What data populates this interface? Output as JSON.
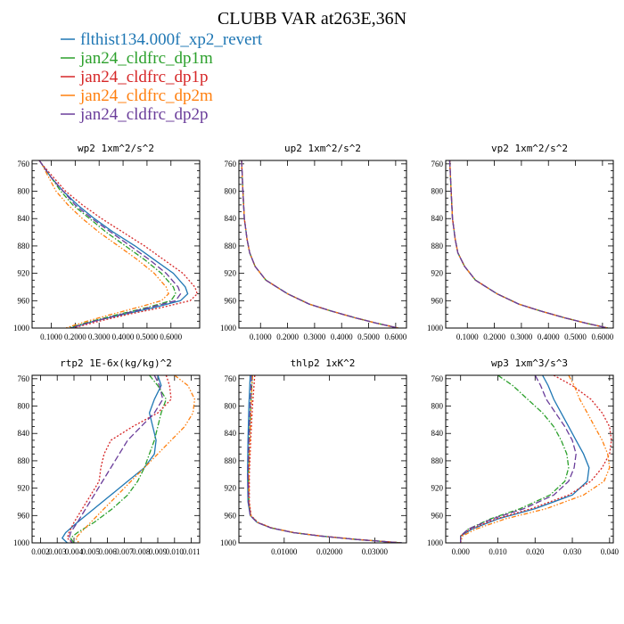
{
  "chart_data": {
    "title": "CLUBB VAR at263E,36N",
    "series": [
      {
        "name": "flthist134.000f_xp2_revert",
        "color": "#1f77b4",
        "dash": ""
      },
      {
        "name": "jan24_cldfrc_dp1m",
        "color": "#2ca02c",
        "dash": "6,2,1.5,2"
      },
      {
        "name": "jan24_cldfrc_dp1p",
        "color": "#d62728",
        "dash": "2,2"
      },
      {
        "name": "jan24_cldfrc_dp2m",
        "color": "#ff7f0e",
        "dash": "5,2,1.5,2,1.5,2"
      },
      {
        "name": "jan24_cldfrc_dp2p",
        "color": "#6a3d9a",
        "dash": "7,3"
      }
    ],
    "y_ticks": [
      "760",
      "800",
      "840",
      "880",
      "920",
      "960",
      "1000"
    ],
    "y_values": [
      760,
      800,
      840,
      880,
      920,
      960,
      1000
    ],
    "ylim": [
      1000,
      755
    ],
    "panels": [
      {
        "id": "wp2",
        "type": "line",
        "title": "wp2   1xm^2/s^2",
        "xlim": [
          0.02,
          0.72
        ],
        "x_ticks": [
          0.1,
          0.2,
          0.3,
          0.4,
          0.5,
          0.6
        ],
        "x_tick_labels": [
          "0.1000",
          "0.2000",
          "0.3000",
          "0.4000",
          "0.5000",
          "0.6000"
        ],
        "y": [
          755,
          760,
          780,
          800,
          820,
          840,
          860,
          880,
          900,
          920,
          940,
          950,
          960,
          970,
          980,
          990,
          1000
        ],
        "values": [
          [
            0.05,
            0.06,
            0.1,
            0.15,
            0.21,
            0.28,
            0.36,
            0.45,
            0.53,
            0.61,
            0.66,
            0.67,
            0.64,
            0.53,
            0.4,
            0.28,
            0.18
          ],
          [
            0.05,
            0.06,
            0.1,
            0.14,
            0.19,
            0.26,
            0.33,
            0.41,
            0.49,
            0.56,
            0.61,
            0.62,
            0.6,
            0.5,
            0.38,
            0.27,
            0.17
          ],
          [
            0.05,
            0.06,
            0.11,
            0.16,
            0.23,
            0.31,
            0.4,
            0.49,
            0.57,
            0.65,
            0.7,
            0.71,
            0.68,
            0.56,
            0.42,
            0.3,
            0.19
          ],
          [
            0.05,
            0.06,
            0.09,
            0.12,
            0.17,
            0.23,
            0.3,
            0.38,
            0.46,
            0.53,
            0.58,
            0.59,
            0.56,
            0.46,
            0.35,
            0.25,
            0.16
          ],
          [
            0.05,
            0.06,
            0.1,
            0.15,
            0.2,
            0.27,
            0.35,
            0.43,
            0.51,
            0.58,
            0.63,
            0.64,
            0.62,
            0.51,
            0.39,
            0.28,
            0.18
          ]
        ]
      },
      {
        "id": "up2",
        "type": "line",
        "title": "up2   1xm^2/s^2",
        "xlim": [
          0.02,
          0.64
        ],
        "x_ticks": [
          0.1,
          0.2,
          0.3,
          0.4,
          0.5,
          0.6
        ],
        "x_tick_labels": [
          "0.1000",
          "0.2000",
          "0.3000",
          "0.4000",
          "0.5000",
          "0.6000"
        ],
        "y": [
          755,
          800,
          840,
          870,
          890,
          910,
          930,
          950,
          965,
          975,
          985,
          993,
          1000
        ],
        "values": [
          [
            0.03,
            0.035,
            0.04,
            0.05,
            0.06,
            0.08,
            0.12,
            0.2,
            0.28,
            0.36,
            0.45,
            0.53,
            0.61
          ],
          [
            0.03,
            0.035,
            0.04,
            0.05,
            0.06,
            0.08,
            0.12,
            0.2,
            0.28,
            0.36,
            0.45,
            0.53,
            0.61
          ],
          [
            0.03,
            0.035,
            0.04,
            0.05,
            0.06,
            0.08,
            0.12,
            0.2,
            0.28,
            0.36,
            0.45,
            0.53,
            0.61
          ],
          [
            0.03,
            0.035,
            0.04,
            0.05,
            0.06,
            0.08,
            0.12,
            0.2,
            0.28,
            0.36,
            0.45,
            0.53,
            0.61
          ],
          [
            0.03,
            0.035,
            0.04,
            0.05,
            0.06,
            0.08,
            0.12,
            0.2,
            0.28,
            0.36,
            0.45,
            0.53,
            0.61
          ]
        ]
      },
      {
        "id": "vp2",
        "type": "line",
        "title": "vp2   1xm^2/s^2",
        "xlim": [
          0.02,
          0.64
        ],
        "x_ticks": [
          0.1,
          0.2,
          0.3,
          0.4,
          0.5,
          0.6
        ],
        "x_tick_labels": [
          "0.1000",
          "0.2000",
          "0.3000",
          "0.4000",
          "0.5000",
          "0.6000"
        ],
        "y": [
          755,
          800,
          840,
          870,
          890,
          910,
          930,
          950,
          965,
          975,
          985,
          993,
          1000
        ],
        "values": [
          [
            0.035,
            0.04,
            0.045,
            0.055,
            0.065,
            0.09,
            0.13,
            0.21,
            0.29,
            0.37,
            0.46,
            0.54,
            0.62
          ],
          [
            0.035,
            0.04,
            0.045,
            0.055,
            0.065,
            0.09,
            0.13,
            0.21,
            0.29,
            0.37,
            0.46,
            0.54,
            0.62
          ],
          [
            0.035,
            0.04,
            0.045,
            0.055,
            0.065,
            0.09,
            0.13,
            0.21,
            0.29,
            0.37,
            0.46,
            0.54,
            0.62
          ],
          [
            0.035,
            0.04,
            0.045,
            0.055,
            0.065,
            0.09,
            0.13,
            0.21,
            0.29,
            0.37,
            0.46,
            0.54,
            0.62
          ],
          [
            0.035,
            0.04,
            0.045,
            0.055,
            0.065,
            0.09,
            0.13,
            0.21,
            0.29,
            0.37,
            0.46,
            0.54,
            0.62
          ]
        ]
      },
      {
        "id": "rtp2",
        "type": "line",
        "title": "rtp2   1E-6x(kg/kg)^2",
        "xlim": [
          0.0015,
          0.0115
        ],
        "x_ticks": [
          0.002,
          0.003,
          0.004,
          0.005,
          0.006,
          0.007,
          0.008,
          0.009,
          0.01,
          0.011
        ],
        "x_tick_labels": [
          "0.002",
          "0.003",
          "0.004",
          "0.005",
          "0.006",
          "0.007",
          "0.008",
          "0.009",
          "0.010",
          "0.011"
        ],
        "y": [
          755,
          770,
          790,
          810,
          830,
          850,
          870,
          890,
          910,
          930,
          950,
          970,
          985,
          993,
          1000
        ],
        "values": [
          [
            0.009,
            0.0092,
            0.0088,
            0.0085,
            0.0087,
            0.0089,
            0.0088,
            0.0082,
            0.0072,
            0.0062,
            0.0052,
            0.0042,
            0.0035,
            0.0033,
            0.0036
          ],
          [
            0.0085,
            0.009,
            0.0095,
            0.0092,
            0.009,
            0.0088,
            0.0085,
            0.0082,
            0.0078,
            0.0072,
            0.0063,
            0.0052,
            0.0042,
            0.0038,
            0.004
          ],
          [
            0.0095,
            0.0097,
            0.0098,
            0.009,
            0.0075,
            0.0062,
            0.0058,
            0.0056,
            0.0055,
            0.005,
            0.0045,
            0.004,
            0.0037,
            0.0036,
            0.0039
          ],
          [
            0.01,
            0.0108,
            0.0112,
            0.0111,
            0.0106,
            0.0098,
            0.009,
            0.0082,
            0.0074,
            0.0066,
            0.0058,
            0.005,
            0.0044,
            0.0041,
            0.0043
          ],
          [
            0.0088,
            0.0091,
            0.0093,
            0.0088,
            0.008,
            0.0072,
            0.0067,
            0.0062,
            0.0057,
            0.0052,
            0.0047,
            0.0042,
            0.0038,
            0.0037,
            0.0039
          ]
        ]
      },
      {
        "id": "thlp2",
        "type": "line",
        "title": "thlp2   1xK^2",
        "xlim": [
          0.0,
          0.037
        ],
        "x_ticks": [
          0.01,
          0.02,
          0.03
        ],
        "x_tick_labels": [
          "0.01000",
          "0.02000",
          "0.03000"
        ],
        "y": [
          755,
          800,
          850,
          900,
          940,
          960,
          970,
          978,
          985,
          990,
          995,
          1000
        ],
        "values": [
          [
            0.0025,
            0.0022,
            0.002,
            0.0019,
            0.002,
            0.0025,
            0.004,
            0.007,
            0.012,
            0.018,
            0.026,
            0.036
          ],
          [
            0.003,
            0.0026,
            0.0023,
            0.0021,
            0.0022,
            0.0026,
            0.0041,
            0.0071,
            0.0121,
            0.0181,
            0.0261,
            0.036
          ],
          [
            0.0035,
            0.003,
            0.0026,
            0.0023,
            0.0023,
            0.0027,
            0.0042,
            0.0072,
            0.0122,
            0.0182,
            0.0262,
            0.036
          ],
          [
            0.003,
            0.0027,
            0.0024,
            0.0022,
            0.0022,
            0.0026,
            0.0041,
            0.0071,
            0.0121,
            0.0181,
            0.0261,
            0.036
          ],
          [
            0.0028,
            0.0025,
            0.0022,
            0.002,
            0.0021,
            0.0025,
            0.004,
            0.007,
            0.012,
            0.018,
            0.026,
            0.036
          ]
        ]
      },
      {
        "id": "wp3",
        "type": "line",
        "title": "wp3   1xm^3/s^3",
        "xlim": [
          -0.004,
          0.041
        ],
        "x_ticks": [
          0.0,
          0.01,
          0.02,
          0.03,
          0.04
        ],
        "x_tick_labels": [
          "0.000",
          "0.010",
          "0.020",
          "0.030",
          "0.040"
        ],
        "y": [
          755,
          770,
          790,
          810,
          830,
          850,
          870,
          890,
          910,
          930,
          950,
          965,
          980,
          990,
          1000
        ],
        "values": [
          [
            0.022,
            0.0235,
            0.025,
            0.027,
            0.029,
            0.031,
            0.033,
            0.0345,
            0.034,
            0.03,
            0.02,
            0.01,
            0.003,
            0.0,
            0.0
          ],
          [
            0.01,
            0.014,
            0.018,
            0.022,
            0.025,
            0.027,
            0.0285,
            0.029,
            0.028,
            0.024,
            0.016,
            0.008,
            0.002,
            0.0,
            0.0
          ],
          [
            0.025,
            0.03,
            0.035,
            0.038,
            0.04,
            0.0405,
            0.04,
            0.038,
            0.035,
            0.029,
            0.019,
            0.0095,
            0.0025,
            0.0,
            0.0
          ],
          [
            0.029,
            0.0305,
            0.032,
            0.034,
            0.036,
            0.038,
            0.0395,
            0.04,
            0.0385,
            0.033,
            0.023,
            0.012,
            0.004,
            0.0005,
            0.0
          ],
          [
            0.02,
            0.0215,
            0.023,
            0.0255,
            0.028,
            0.03,
            0.031,
            0.0305,
            0.029,
            0.025,
            0.017,
            0.0085,
            0.002,
            0.0,
            0.0
          ]
        ]
      }
    ]
  }
}
